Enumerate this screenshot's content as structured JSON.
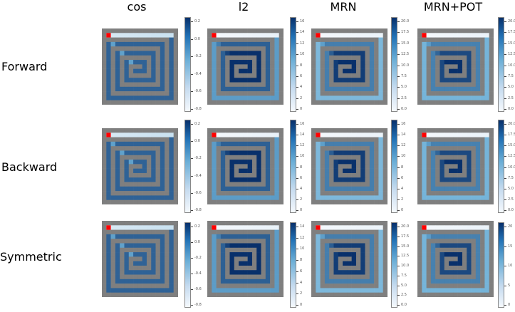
{
  "columns": [
    "cos",
    "l2",
    "MRN",
    "MRN+POT"
  ],
  "rows": [
    "Forward",
    "Backward",
    "Symmetric"
  ],
  "panels": [
    [
      {
        "variant": "cos",
        "ticks": [
          "0.2",
          "0.0",
          "-0.2",
          "-0.4",
          "-0.6",
          "-0.8"
        ]
      },
      {
        "variant": "l2",
        "ticks": [
          "16",
          "14",
          "12",
          "10",
          "8",
          "6",
          "4",
          "2",
          "0"
        ]
      },
      {
        "variant": "mrn",
        "ticks": [
          "20.0",
          "17.5",
          "15.0",
          "12.5",
          "10.0",
          "7.5",
          "5.0",
          "2.5",
          "0.0"
        ]
      },
      {
        "variant": "pot",
        "ticks": [
          "20.0",
          "17.5",
          "15.0",
          "12.5",
          "10.0",
          "7.5",
          "5.0",
          "2.5",
          "0.0"
        ]
      }
    ],
    [
      {
        "variant": "cos",
        "ticks": [
          "0.2",
          "0.0",
          "-0.2",
          "-0.4",
          "-0.6",
          "-0.8"
        ]
      },
      {
        "variant": "l2",
        "ticks": [
          "16",
          "14",
          "12",
          "10",
          "8",
          "6",
          "4",
          "2",
          "0"
        ]
      },
      {
        "variant": "mrn",
        "ticks": [
          "16",
          "14",
          "12",
          "10",
          "8",
          "6",
          "4",
          "2",
          "0"
        ]
      },
      {
        "variant": "pot",
        "ticks": [
          "20.0",
          "17.5",
          "15.0",
          "12.5",
          "10.0",
          "7.5",
          "5.0",
          "2.5",
          "0.0"
        ]
      }
    ],
    [
      {
        "variant": "cos",
        "ticks": [
          "0.2",
          "0.0",
          "-0.2",
          "-0.4",
          "-0.6",
          "-0.8"
        ]
      },
      {
        "variant": "l2",
        "ticks": [
          "14",
          "12",
          "10",
          "8",
          "6",
          "4",
          "2",
          "0"
        ]
      },
      {
        "variant": "mrn",
        "ticks": [
          "20.0",
          "17.5",
          "15.0",
          "12.5",
          "10.0",
          "7.5",
          "5.0",
          "2.5",
          "0.0"
        ]
      },
      {
        "variant": "pot",
        "ticks": [
          "20",
          "15",
          "10",
          "5",
          "0"
        ]
      }
    ]
  ],
  "colors": {
    "wall": "#7f7f7f",
    "goal": "#ff0000",
    "light": "#f4f8fc",
    "mid": "#6aaed6",
    "dark": "#08306b"
  }
}
